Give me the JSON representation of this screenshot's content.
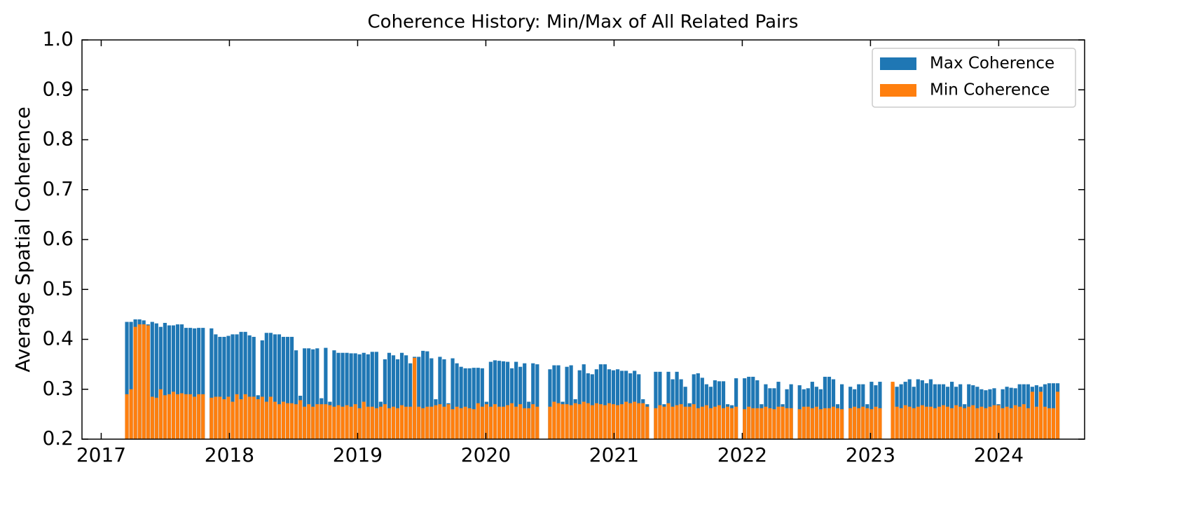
{
  "chart_data": {
    "type": "bar_overlay",
    "title": "Coherence History: Min/Max of All Related Pairs",
    "y_label": "Average Spatial Coherence",
    "xlim": [
      2016.85,
      2024.67
    ],
    "xticks": [
      2017,
      2018,
      2019,
      2020,
      2021,
      2022,
      2023,
      2024
    ],
    "ylim": [
      0.2,
      1.0
    ],
    "yticks": [
      0.2,
      0.3,
      0.4,
      0.5,
      0.6,
      0.7,
      0.8,
      0.9,
      {
        "value": 1.0,
        "label": "1.0"
      }
    ],
    "legend": "upper right",
    "x": [
      2017.2,
      2017.233,
      2017.266,
      2017.299,
      2017.332,
      2017.365,
      2017.398,
      2017.431,
      2017.464,
      2017.497,
      2017.53,
      2017.563,
      2017.596,
      2017.629,
      2017.662,
      2017.695,
      2017.728,
      2017.761,
      2017.794,
      2017.827,
      2017.86,
      2017.893,
      2017.926,
      2017.959,
      2017.992,
      2018.025,
      2018.058,
      2018.091,
      2018.124,
      2018.157,
      2018.19,
      2018.223,
      2018.256,
      2018.289,
      2018.322,
      2018.355,
      2018.388,
      2018.421,
      2018.454,
      2018.487,
      2018.52,
      2018.553,
      2018.586,
      2018.619,
      2018.652,
      2018.685,
      2018.718,
      2018.751,
      2018.784,
      2018.817,
      2018.85,
      2018.883,
      2018.916,
      2018.949,
      2018.982,
      2019.015,
      2019.048,
      2019.081,
      2019.114,
      2019.147,
      2019.18,
      2019.213,
      2019.246,
      2019.279,
      2019.312,
      2019.345,
      2019.378,
      2019.411,
      2019.444,
      2019.477,
      2019.51,
      2019.543,
      2019.576,
      2019.609,
      2019.642,
      2019.675,
      2019.708,
      2019.741,
      2019.774,
      2019.807,
      2019.84,
      2019.873,
      2019.906,
      2019.939,
      2019.972,
      2020.005,
      2020.038,
      2020.071,
      2020.104,
      2020.137,
      2020.17,
      2020.203,
      2020.236,
      2020.269,
      2020.302,
      2020.335,
      2020.368,
      2020.401,
      2020.434,
      2020.467,
      2020.5,
      2020.533,
      2020.566,
      2020.599,
      2020.632,
      2020.665,
      2020.698,
      2020.731,
      2020.764,
      2020.797,
      2020.83,
      2020.863,
      2020.896,
      2020.929,
      2020.962,
      2020.995,
      2021.028,
      2021.061,
      2021.094,
      2021.127,
      2021.16,
      2021.193,
      2021.226,
      2021.259,
      2021.292,
      2021.325,
      2021.358,
      2021.391,
      2021.424,
      2021.457,
      2021.49,
      2021.523,
      2021.556,
      2021.589,
      2021.622,
      2021.655,
      2021.688,
      2021.721,
      2021.754,
      2021.787,
      2021.82,
      2021.853,
      2021.886,
      2021.919,
      2021.952,
      2021.985,
      2022.018,
      2022.051,
      2022.084,
      2022.117,
      2022.15,
      2022.183,
      2022.216,
      2022.249,
      2022.282,
      2022.315,
      2022.348,
      2022.381,
      2022.414,
      2022.447,
      2022.48,
      2022.513,
      2022.546,
      2022.579,
      2022.612,
      2022.645,
      2022.678,
      2022.711,
      2022.744,
      2022.777,
      2022.81,
      2022.843,
      2022.876,
      2022.909,
      2022.942,
      2022.975,
      2023.008,
      2023.041,
      2023.074,
      2023.107,
      2023.14,
      2023.173,
      2023.206,
      2023.239,
      2023.272,
      2023.305,
      2023.338,
      2023.371,
      2023.404,
      2023.437,
      2023.47,
      2023.503,
      2023.536,
      2023.569,
      2023.602,
      2023.635,
      2023.668,
      2023.701,
      2023.734,
      2023.767,
      2023.8,
      2023.833,
      2023.866,
      2023.899,
      2023.932,
      2023.965,
      2023.998,
      2024.031,
      2024.064,
      2024.097,
      2024.13,
      2024.163,
      2024.196,
      2024.229,
      2024.262,
      2024.295,
      2024.328,
      2024.361,
      2024.394,
      2024.427,
      2024.46
    ],
    "series": [
      {
        "name": "Max Coherence",
        "color": "#1f77b4",
        "values": [
          0.435,
          0.435,
          0.44,
          0.44,
          0.438,
          0.43,
          0.435,
          0.432,
          0.425,
          0.433,
          0.428,
          0.428,
          0.43,
          0.43,
          0.423,
          0.423,
          0.422,
          0.423,
          0.423,
          null,
          0.422,
          0.41,
          0.405,
          0.405,
          0.407,
          0.41,
          0.41,
          0.415,
          0.415,
          0.408,
          0.405,
          0.288,
          0.398,
          0.413,
          0.413,
          0.41,
          0.41,
          0.405,
          0.405,
          0.405,
          0.378,
          0.287,
          0.382,
          0.382,
          0.38,
          0.382,
          0.282,
          0.383,
          0.275,
          0.378,
          0.373,
          0.373,
          0.373,
          0.372,
          0.372,
          0.37,
          0.373,
          0.37,
          0.375,
          0.375,
          0.275,
          0.36,
          0.373,
          0.368,
          0.36,
          0.373,
          0.368,
          0.352,
          0.365,
          0.365,
          0.377,
          0.376,
          0.362,
          0.28,
          0.365,
          0.36,
          0.272,
          0.362,
          0.352,
          0.345,
          0.342,
          0.342,
          0.343,
          0.343,
          0.342,
          0.275,
          0.355,
          0.358,
          0.357,
          0.356,
          0.355,
          0.342,
          0.355,
          0.345,
          0.352,
          0.275,
          0.352,
          0.35,
          null,
          null,
          0.34,
          0.348,
          0.348,
          0.275,
          0.345,
          0.348,
          0.28,
          0.338,
          0.35,
          0.332,
          0.33,
          0.34,
          0.35,
          0.35,
          0.34,
          0.338,
          0.34,
          0.337,
          0.337,
          0.332,
          0.337,
          0.33,
          0.28,
          0.27,
          null,
          0.335,
          0.335,
          0.27,
          0.335,
          0.32,
          0.335,
          0.32,
          0.305,
          0.272,
          0.33,
          0.332,
          0.323,
          0.31,
          0.305,
          0.318,
          0.316,
          0.316,
          0.27,
          0.268,
          0.322,
          null,
          0.322,
          0.325,
          0.325,
          0.318,
          0.27,
          0.31,
          0.302,
          0.302,
          0.315,
          0.27,
          0.3,
          0.31,
          null,
          0.308,
          0.3,
          0.302,
          0.315,
          0.305,
          0.3,
          0.325,
          0.325,
          0.32,
          0.27,
          0.31,
          null,
          0.305,
          0.3,
          0.31,
          0.31,
          0.27,
          0.315,
          0.308,
          0.315,
          null,
          null,
          0.312,
          0.305,
          0.31,
          0.315,
          0.32,
          0.305,
          0.32,
          0.318,
          0.312,
          0.32,
          0.31,
          0.31,
          0.31,
          0.305,
          0.315,
          0.305,
          0.31,
          0.27,
          0.31,
          0.308,
          0.305,
          0.3,
          0.298,
          0.3,
          0.302,
          0.27,
          0.3,
          0.305,
          0.303,
          0.302,
          0.31,
          0.31,
          0.31,
          0.305,
          0.308,
          0.305,
          0.31,
          0.312,
          0.312,
          0.312
        ]
      },
      {
        "name": "Min Coherence",
        "color": "#ff7f0e",
        "values": [
          0.29,
          0.3,
          0.425,
          0.43,
          0.43,
          0.428,
          0.285,
          0.283,
          0.3,
          0.288,
          0.29,
          0.295,
          0.29,
          0.292,
          0.29,
          0.29,
          0.285,
          0.29,
          0.29,
          null,
          0.283,
          0.285,
          0.285,
          0.28,
          0.285,
          0.275,
          0.29,
          0.28,
          0.29,
          0.285,
          0.285,
          0.28,
          0.285,
          0.275,
          0.285,
          0.275,
          0.27,
          0.275,
          0.272,
          0.272,
          0.27,
          0.278,
          0.265,
          0.27,
          0.265,
          0.27,
          0.27,
          0.27,
          0.268,
          0.265,
          0.268,
          0.265,
          0.268,
          0.265,
          0.27,
          0.262,
          0.275,
          0.265,
          0.265,
          0.262,
          0.265,
          0.27,
          0.262,
          0.265,
          0.262,
          0.268,
          0.265,
          0.265,
          0.363,
          0.265,
          0.262,
          0.265,
          0.265,
          0.268,
          0.27,
          0.265,
          0.27,
          0.26,
          0.265,
          0.262,
          0.265,
          0.262,
          0.26,
          0.272,
          0.265,
          0.27,
          0.265,
          0.27,
          0.265,
          0.265,
          0.268,
          0.272,
          0.265,
          0.27,
          0.262,
          0.262,
          0.27,
          0.265,
          null,
          null,
          0.265,
          0.275,
          0.272,
          0.27,
          0.27,
          0.268,
          0.272,
          0.27,
          0.275,
          0.272,
          0.268,
          0.272,
          0.27,
          0.268,
          0.272,
          0.27,
          0.268,
          0.27,
          0.275,
          0.272,
          0.275,
          0.272,
          0.272,
          0.265,
          null,
          0.262,
          0.268,
          0.265,
          0.272,
          0.265,
          0.268,
          0.27,
          0.265,
          0.265,
          0.27,
          0.262,
          0.265,
          0.268,
          0.262,
          0.265,
          0.268,
          0.262,
          0.265,
          0.262,
          0.265,
          null,
          0.26,
          0.265,
          0.262,
          0.262,
          0.262,
          0.265,
          0.262,
          0.26,
          0.265,
          0.265,
          0.262,
          0.262,
          null,
          0.26,
          0.265,
          0.265,
          0.262,
          0.265,
          0.26,
          0.262,
          0.262,
          0.265,
          0.262,
          0.26,
          null,
          0.262,
          0.265,
          0.262,
          0.265,
          0.262,
          0.26,
          0.265,
          0.262,
          null,
          null,
          0.315,
          0.265,
          0.262,
          0.268,
          0.265,
          0.262,
          0.265,
          0.268,
          0.265,
          0.265,
          0.262,
          0.265,
          0.268,
          0.265,
          0.262,
          0.268,
          0.265,
          0.262,
          0.265,
          0.268,
          0.262,
          0.265,
          0.262,
          0.265,
          0.268,
          0.268,
          0.262,
          0.265,
          0.262,
          0.268,
          0.265,
          0.27,
          0.262,
          0.295,
          0.265,
          0.295,
          0.265,
          0.262,
          0.262,
          0.295
        ]
      }
    ]
  }
}
